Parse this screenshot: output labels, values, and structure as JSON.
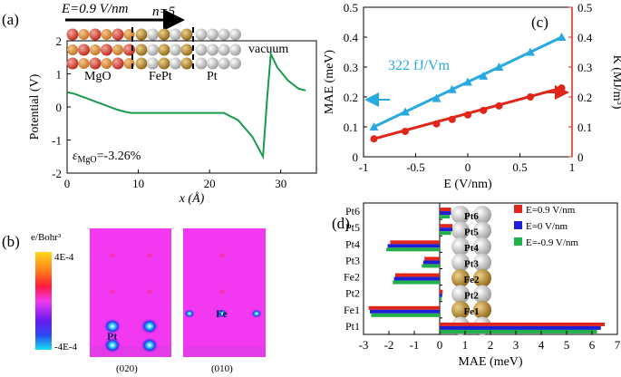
{
  "panels": {
    "a": {
      "label": "(a)",
      "field_label": "E=0.9 V/nm",
      "n_label": "n=5",
      "region_labels": [
        "MgO",
        "FePt",
        "Pt",
        "vacuum"
      ],
      "epsilon_label": "εMgO=-3.26%",
      "epsilon_symbol": "ε",
      "epsilon_sub": "MgO",
      "epsilon_value": "=-3.26%"
    },
    "b": {
      "label": "(b)",
      "colorbar_title": "e/Bohr³",
      "colorbar_max": "4E-4",
      "colorbar_min": "-4E-4",
      "map_labels": [
        "(020)",
        "(010)"
      ],
      "atom_labels": [
        "Pt",
        "Fe"
      ]
    },
    "c": {
      "label": "(c)",
      "slope_annotation": "322 fJ/Vm"
    },
    "d": {
      "label": "(d)",
      "atom_labels": [
        "Pt6",
        "Pt5",
        "Pt4",
        "Pt3",
        "Fe2",
        "Pt2",
        "Fe1",
        "Pt1"
      ]
    }
  },
  "colors": {
    "green_line": "#1a9a4a",
    "cyan": "#28a9e0",
    "red": "#e0251b",
    "blue": "#1f1fd6",
    "bar_green": "#22b04a",
    "magenta_bg": "#f238f0",
    "fe_gold": "#b08223",
    "pt_gray": "#b9b9b9",
    "o_red": "#d83b2b"
  },
  "chart_data": [
    {
      "id": "a",
      "type": "line",
      "title": "",
      "xlabel": "x (Å)",
      "ylabel": "Potential (V)",
      "xlim": [
        0,
        35
      ],
      "ylim": [
        -2,
        2
      ],
      "xticks": [
        0,
        10,
        20,
        30
      ],
      "yticks": [
        -2,
        -1,
        0,
        1,
        2
      ],
      "series": [
        {
          "name": "Potential",
          "x": [
            0,
            1,
            2,
            3,
            4,
            5,
            6,
            7,
            8,
            9,
            12,
            16,
            20,
            22,
            24,
            26,
            27.5,
            28.1,
            28.6,
            29.5,
            31,
            32.5,
            33.5
          ],
          "y": [
            0.45,
            0.4,
            0.32,
            0.24,
            0.16,
            0.08,
            0.0,
            -0.08,
            -0.14,
            -0.18,
            -0.18,
            -0.18,
            -0.18,
            -0.18,
            -0.4,
            -0.9,
            -1.5,
            0.3,
            1.6,
            1.2,
            0.8,
            0.55,
            0.5
          ]
        }
      ]
    },
    {
      "id": "c",
      "type": "scatter",
      "title": "",
      "xlabel": "E (V/nm)",
      "ylabel": "MAE (meV)",
      "ylabel_right": "K (MJ/m³)",
      "xlim": [
        -1,
        1
      ],
      "ylim": [
        0,
        0.5
      ],
      "ylim_right": [
        0,
        0.5
      ],
      "xticks": [
        -1,
        -0.5,
        0,
        0.5,
        1
      ],
      "yticks": [
        0,
        0.1,
        0.2,
        0.3,
        0.4,
        0.5
      ],
      "series": [
        {
          "name": "MAE",
          "axis": "left",
          "marker": "triangle",
          "x": [
            -0.9,
            -0.6,
            -0.3,
            -0.15,
            0,
            0.15,
            0.3,
            0.6,
            0.9
          ],
          "y": [
            0.1,
            0.15,
            0.195,
            0.225,
            0.25,
            0.27,
            0.3,
            0.35,
            0.4
          ]
        },
        {
          "name": "K",
          "axis": "right",
          "marker": "circle",
          "x": [
            -0.9,
            -0.6,
            -0.3,
            -0.15,
            0,
            0.15,
            0.3,
            0.6,
            0.9
          ],
          "y": [
            0.06,
            0.085,
            0.11,
            0.125,
            0.14,
            0.155,
            0.17,
            0.2,
            0.23
          ]
        }
      ]
    },
    {
      "id": "d",
      "type": "bar",
      "orientation": "horizontal",
      "title": "",
      "xlabel": "MAE (meV)",
      "ylabel": "",
      "xlim": [
        -3,
        7
      ],
      "xticks": [
        -3,
        -2,
        -1,
        0,
        1,
        2,
        3,
        4,
        5,
        6,
        7
      ],
      "categories": [
        "Pt6",
        "Pt5",
        "Pt4",
        "Pt3",
        "Fe2",
        "Pt2",
        "Fe1",
        "Pt1"
      ],
      "legend_position": "top-right",
      "series": [
        {
          "name": "E=0.9 V/nm",
          "values": [
            0.45,
            0.5,
            -1.95,
            -0.6,
            -1.75,
            0.12,
            -2.8,
            6.5
          ]
        },
        {
          "name": "E=0 V/nm",
          "values": [
            0.45,
            0.5,
            -2.05,
            -0.65,
            -1.8,
            0.1,
            -2.75,
            6.35
          ]
        },
        {
          "name": "E=-0.9 V/nm",
          "values": [
            0.4,
            0.45,
            -2.1,
            -0.7,
            -1.85,
            0.08,
            -2.7,
            6.2
          ]
        }
      ]
    }
  ]
}
